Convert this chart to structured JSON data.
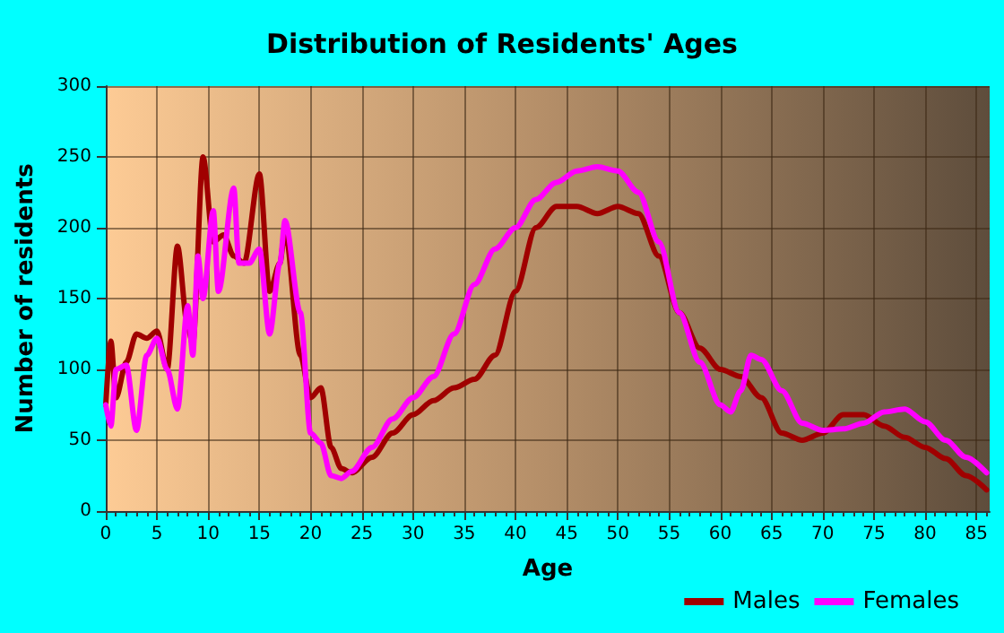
{
  "chart_data": {
    "type": "line",
    "title": "Distribution of Residents' Ages",
    "xlabel": "Age",
    "ylabel": "Number of residents",
    "xlim": [
      0,
      86.3
    ],
    "xticks": [
      0,
      5,
      10,
      15,
      20,
      25,
      30,
      35,
      40,
      45,
      50,
      55,
      60,
      65,
      70,
      75,
      80,
      85
    ],
    "ylim": [
      0,
      300
    ],
    "yticks": [
      0,
      50,
      100,
      150,
      200,
      250,
      300
    ],
    "grid": true,
    "legend": "bottom right",
    "marker": "none",
    "line_style": "solid",
    "series": [
      {
        "name": "Males",
        "color": "#a00000",
        "x": [
          0,
          0.5,
          1,
          2,
          3,
          4,
          5,
          6,
          7,
          8,
          8.5,
          9.5,
          10.5,
          11.5,
          12.5,
          13.5,
          15,
          16,
          17,
          17.5,
          19,
          20,
          21,
          22,
          23,
          24,
          26,
          28,
          30,
          32,
          34,
          36,
          38,
          40,
          42,
          44,
          46,
          48,
          50,
          52,
          54,
          56,
          58,
          60,
          62,
          64,
          66,
          68,
          70,
          72,
          74,
          76,
          78,
          80,
          82,
          84,
          86
        ],
        "values": [
          75,
          120,
          80,
          105,
          125,
          122,
          127,
          100,
          187,
          130,
          118,
          250,
          190,
          195,
          180,
          175,
          238,
          155,
          175,
          198,
          110,
          80,
          87,
          45,
          30,
          27,
          38,
          55,
          68,
          78,
          87,
          93,
          110,
          155,
          200,
          215,
          215,
          210,
          215,
          210,
          180,
          140,
          115,
          100,
          95,
          80,
          55,
          50,
          55,
          68,
          68,
          60,
          52,
          45,
          37,
          25,
          15
        ]
      },
      {
        "name": "Females",
        "color": "#ff00ff",
        "x": [
          0,
          0.5,
          1,
          2,
          3,
          4,
          5,
          6,
          7,
          8,
          8.5,
          9,
          9.5,
          10.5,
          11,
          12.5,
          13,
          14,
          15,
          16,
          17,
          17.5,
          19,
          20,
          21,
          22,
          23,
          24,
          26,
          28,
          30,
          32,
          34,
          36,
          38,
          40,
          42,
          44,
          46,
          48,
          50,
          52,
          54,
          56,
          58,
          60,
          61,
          62,
          63,
          64,
          66,
          68,
          70,
          72,
          74,
          76,
          78,
          80,
          82,
          84,
          86
        ],
        "values": [
          75,
          60,
          100,
          103,
          57,
          110,
          122,
          100,
          72,
          145,
          110,
          180,
          150,
          212,
          155,
          228,
          175,
          175,
          185,
          125,
          175,
          205,
          140,
          55,
          48,
          25,
          23,
          28,
          45,
          65,
          80,
          95,
          125,
          160,
          185,
          200,
          220,
          232,
          240,
          243,
          240,
          225,
          190,
          140,
          105,
          75,
          70,
          85,
          110,
          107,
          85,
          62,
          57,
          58,
          62,
          70,
          72,
          63,
          50,
          38,
          27
        ]
      }
    ]
  }
}
